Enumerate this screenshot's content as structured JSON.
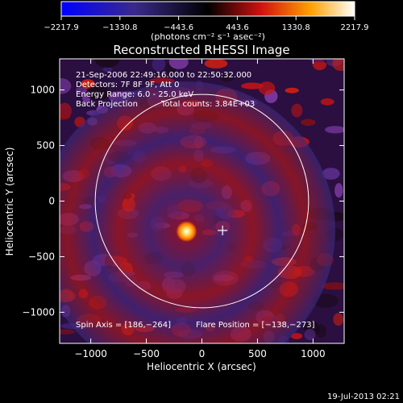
{
  "colorbar": {
    "ticks": [
      "−2217.9",
      "−1330.8",
      "−443.6",
      "443.6",
      "1330.8",
      "2217.9"
    ],
    "units": "(photons cm⁻² s⁻¹ asec⁻²)"
  },
  "chart_data": {
    "type": "heatmap",
    "title": "Reconstructed RHESSI Image",
    "xlabel": "Heliocentric X (arcsec)",
    "ylabel": "Heliocentric Y (arcsec)",
    "xlim": [
      -1280,
      1280
    ],
    "ylim": [
      -1280,
      1280
    ],
    "x_ticks": [
      -1000,
      -500,
      0,
      500,
      1000
    ],
    "y_ticks": [
      1000,
      500,
      0,
      -500,
      -1000
    ],
    "x_tick_labels": [
      "−1000",
      "−500",
      "0",
      "500",
      "1000"
    ],
    "y_tick_labels": [
      "1000",
      "500",
      "0",
      "−500",
      "−1000"
    ],
    "value_range": [
      -2217.9,
      2217.9
    ],
    "solar_limb_radius_arcsec": 960,
    "source": {
      "x": -138,
      "y": -273
    },
    "spin_axis": {
      "x": 186,
      "y": -264
    },
    "annotations": [
      "21-Sep-2006 22:49:16.000 to 22:50:32.000",
      "Detectors: 7F 8F 9F, Att 0",
      "Energy Range: 6.0 - 25.0 keV",
      "Back Projection",
      "Total counts: 3.84E+03"
    ],
    "footer_left": "Spin Axis = [186,−264]",
    "footer_right": "Flare Position = [−138,−273]"
  },
  "timestamp": "19-Jul-2013 02:21",
  "colors": {
    "background": "#000000",
    "frame": "#ffffff",
    "colormap": [
      "#0000ff",
      "#3a2a8a",
      "#000000",
      "#d01010",
      "#ffa000",
      "#ffffff"
    ]
  }
}
